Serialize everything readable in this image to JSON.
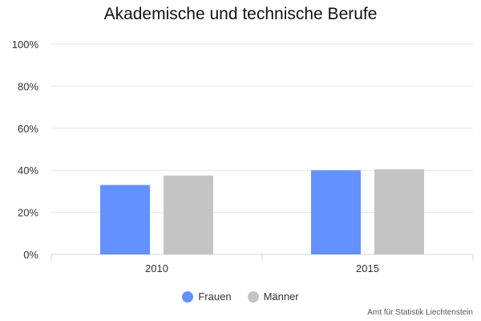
{
  "chart_data": {
    "type": "bar",
    "title": "Akademische und technische Berufe",
    "categories": [
      "2010",
      "2015"
    ],
    "series": [
      {
        "name": "Frauen",
        "values": [
          33,
          40
        ],
        "color": "#6391ff"
      },
      {
        "name": "Männer",
        "values": [
          37.5,
          40.5
        ],
        "color": "#c4c4c4"
      }
    ],
    "ylim": [
      0,
      100
    ],
    "yticks": [
      "0%",
      "20%",
      "40%",
      "60%",
      "80%",
      "100%"
    ],
    "ytick_values": [
      0,
      20,
      40,
      60,
      80,
      100
    ],
    "grid": true,
    "legend_position": "bottom-center",
    "xlabel": "",
    "ylabel": ""
  },
  "credits": "Amt für Statistik Liechtenstein"
}
